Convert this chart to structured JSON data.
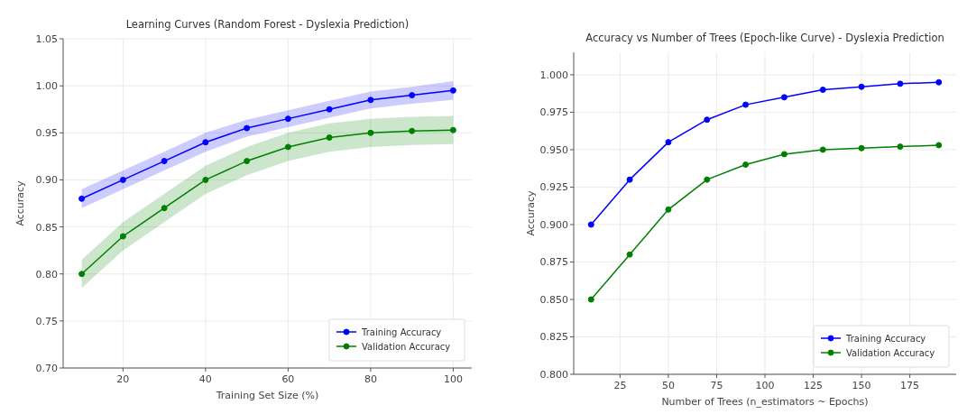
{
  "chart_data": [
    {
      "type": "line",
      "title": "Learning Curves (Random Forest - Dyslexia Prediction)",
      "xlabel": "Training Set Size (%)",
      "ylabel": "Accuracy",
      "x": [
        10,
        20,
        30,
        40,
        50,
        60,
        70,
        80,
        90,
        100
      ],
      "series": [
        {
          "name": "Training Accuracy",
          "color": "#0000ff",
          "values": [
            0.88,
            0.9,
            0.92,
            0.94,
            0.955,
            0.965,
            0.975,
            0.985,
            0.99,
            0.995
          ],
          "lower": [
            0.87,
            0.89,
            0.91,
            0.93,
            0.946,
            0.956,
            0.966,
            0.976,
            0.981,
            0.985
          ],
          "upper": [
            0.89,
            0.91,
            0.93,
            0.95,
            0.964,
            0.974,
            0.984,
            0.994,
            0.999,
            1.005
          ]
        },
        {
          "name": "Validation Accuracy",
          "color": "#008000",
          "values": [
            0.8,
            0.84,
            0.87,
            0.9,
            0.92,
            0.935,
            0.945,
            0.95,
            0.952,
            0.953
          ],
          "lower": [
            0.785,
            0.825,
            0.855,
            0.885,
            0.905,
            0.92,
            0.93,
            0.935,
            0.937,
            0.938
          ],
          "upper": [
            0.815,
            0.855,
            0.885,
            0.915,
            0.935,
            0.95,
            0.96,
            0.965,
            0.967,
            0.968
          ]
        }
      ],
      "xlim": [
        5.5,
        104.5
      ],
      "xticks": [
        20,
        40,
        60,
        80,
        100
      ],
      "ylim": [
        0.7,
        1.05
      ],
      "yticks": [
        {
          "value": 0.7,
          "label": "0.70"
        },
        {
          "value": 0.75,
          "label": "0.75"
        },
        {
          "value": 0.8,
          "label": "0.80"
        },
        {
          "value": 0.85,
          "label": "0.85"
        },
        {
          "value": 0.9,
          "label": "0.90"
        },
        {
          "value": 0.95,
          "label": "0.95"
        },
        {
          "value": 1.0,
          "label": "1.00"
        },
        {
          "value": 1.05,
          "label": "1.05"
        }
      ],
      "grid": true,
      "legend": "bottom right",
      "marker": "circle",
      "line_style": "solid"
    },
    {
      "type": "line",
      "title": "Accuracy vs Number of Trees (Epoch-like Curve) - Dyslexia Prediction",
      "xlabel": "Number of Trees (n_estimators ~ Epochs)",
      "ylabel": "Accuracy",
      "x": [
        10,
        30,
        50,
        70,
        90,
        110,
        130,
        150,
        170,
        190
      ],
      "series": [
        {
          "name": "Training Accuracy",
          "color": "#0000ff",
          "values": [
            0.9,
            0.93,
            0.955,
            0.97,
            0.98,
            0.985,
            0.99,
            0.992,
            0.994,
            0.995
          ]
        },
        {
          "name": "Validation Accuracy",
          "color": "#008000",
          "values": [
            0.85,
            0.88,
            0.91,
            0.93,
            0.94,
            0.947,
            0.95,
            0.951,
            0.952,
            0.953
          ]
        }
      ],
      "xlim": [
        1,
        199
      ],
      "xticks": [
        25,
        50,
        75,
        100,
        125,
        150,
        175
      ],
      "ylim": [
        0.8,
        1.015
      ],
      "yticks": [
        {
          "value": 0.8,
          "label": "0.800"
        },
        {
          "value": 0.825,
          "label": "0.825"
        },
        {
          "value": 0.85,
          "label": "0.850"
        },
        {
          "value": 0.875,
          "label": "0.875"
        },
        {
          "value": 0.9,
          "label": "0.900"
        },
        {
          "value": 0.925,
          "label": "0.925"
        },
        {
          "value": 0.95,
          "label": "0.950"
        },
        {
          "value": 0.975,
          "label": "0.975"
        },
        {
          "value": 1.0,
          "label": "1.000"
        }
      ],
      "grid": true,
      "legend": "bottom right",
      "marker": "circle",
      "line_style": "solid"
    }
  ]
}
